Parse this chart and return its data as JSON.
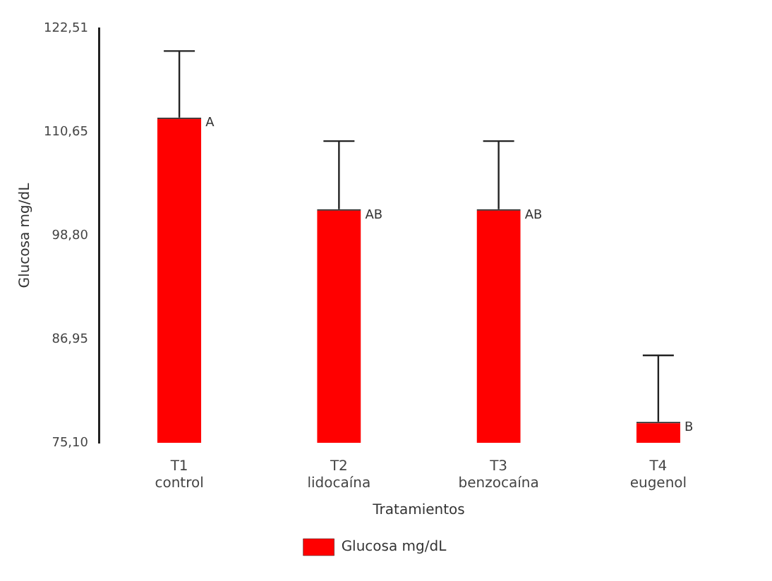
{
  "chart_data": {
    "type": "bar",
    "xlabel": "Tratamientos",
    "ylabel": "Glucosa mg/dL",
    "categories": [
      "T1\ncontrol",
      "T2\nlidocaína",
      "T3\nbenzocaína",
      "T4\neugenol"
    ],
    "series": [
      {
        "name": "Glucosa mg/dL",
        "color": "#ff0000",
        "values": [
          112.3,
          101.8,
          101.8,
          77.5
        ],
        "errors": [
          [
            112.3,
            119.9
          ],
          [
            101.8,
            109.6
          ],
          [
            101.8,
            109.6
          ],
          [
            77.5,
            85.1
          ]
        ]
      }
    ],
    "ylim": [
      75.1,
      122.51
    ],
    "yticks": [
      {
        "value": 75.1,
        "label": "75,10"
      },
      {
        "value": 86.95,
        "label": "86,95"
      },
      {
        "value": 98.8,
        "label": "98,80"
      },
      {
        "value": 110.65,
        "label": "110,65"
      },
      {
        "value": 122.51,
        "label": "122,51"
      }
    ],
    "annotations": [
      {
        "text": "A",
        "x": "T1\ncontrol",
        "y": 112.3
      },
      {
        "text": "AB",
        "x": "T2\nlidocaína",
        "y": 101.8
      },
      {
        "text": "AB",
        "x": "T3\nbenzocaína",
        "y": 101.8
      },
      {
        "text": "B",
        "x": "T4\neugenol",
        "y": 77.5
      }
    ],
    "grid": false,
    "legend": "bottom"
  }
}
